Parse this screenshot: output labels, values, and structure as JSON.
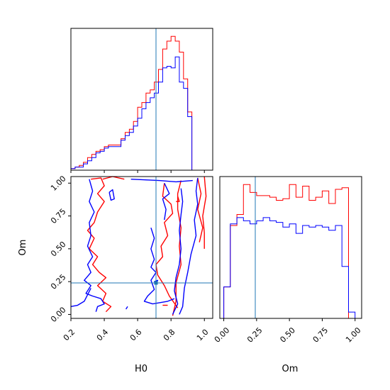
{
  "colors": {
    "series_red": "#ff0000",
    "series_blue": "#0000ff",
    "truth_line": "#1f77b4"
  },
  "chart_data": [
    {
      "type": "area",
      "panel": "H0 marginal histogram (step)",
      "xlim": [
        0.2,
        1.05
      ],
      "x_ticks": [
        0.2,
        0.4,
        0.6,
        0.8,
        1.0
      ],
      "x_tick_labels_shown": false,
      "y_ticks_shown": false,
      "truth": 0.71,
      "bin_edges": [
        0.2,
        0.225,
        0.25,
        0.275,
        0.3,
        0.325,
        0.35,
        0.375,
        0.4,
        0.425,
        0.45,
        0.475,
        0.5,
        0.525,
        0.55,
        0.575,
        0.6,
        0.625,
        0.65,
        0.675,
        0.7,
        0.725,
        0.75,
        0.775,
        0.8,
        0.825,
        0.85,
        0.875,
        0.9,
        0.925,
        0.95,
        0.975,
        1.0,
        1.025
      ],
      "series": [
        {
          "color": "red",
          "values": [
            0.01,
            0.02,
            0.03,
            0.05,
            0.08,
            0.1,
            0.12,
            0.13,
            0.15,
            0.16,
            0.16,
            0.16,
            0.2,
            0.24,
            0.26,
            0.31,
            0.4,
            0.43,
            0.49,
            0.51,
            0.56,
            0.64,
            0.77,
            0.82,
            0.85,
            0.82,
            0.75,
            0.58,
            0.37,
            0.0,
            0.0,
            0.0,
            0.0
          ]
        },
        {
          "color": "blue",
          "values": [
            0.01,
            0.02,
            0.02,
            0.04,
            0.06,
            0.08,
            0.11,
            0.12,
            0.14,
            0.15,
            0.15,
            0.15,
            0.19,
            0.22,
            0.24,
            0.28,
            0.33,
            0.39,
            0.43,
            0.46,
            0.49,
            0.56,
            0.65,
            0.66,
            0.65,
            0.72,
            0.56,
            0.52,
            0.34,
            0.0,
            0.0,
            0.0,
            0.0
          ]
        }
      ]
    },
    {
      "type": "line",
      "panel": "H0 vs Om 2D contours",
      "xlabel": "H0",
      "ylabel": "Om",
      "xlim": [
        0.2,
        1.05
      ],
      "ylim": [
        -0.03,
        1.05
      ],
      "x_ticks": [
        0.2,
        0.4,
        0.6,
        0.8,
        1.0
      ],
      "x_tick_labels": [
        "0.2",
        "0.4",
        "0.6",
        "0.8",
        "1.0"
      ],
      "y_ticks": [
        0.0,
        0.25,
        0.5,
        0.75,
        1.0
      ],
      "y_tick_labels": [
        "0.00",
        "0.25",
        "0.50",
        "0.75",
        "1.00"
      ],
      "truth": {
        "H0": 0.71,
        "Om": 0.24
      },
      "series": [
        {
          "color": "red",
          "contours": [
            [
              [
                0.32,
                1.03
              ],
              [
                0.38,
                1.04
              ],
              [
                0.4,
                0.98
              ],
              [
                0.36,
                0.92
              ],
              [
                0.4,
                0.86
              ],
              [
                0.36,
                0.78
              ],
              [
                0.34,
                0.7
              ],
              [
                0.3,
                0.64
              ],
              [
                0.34,
                0.58
              ],
              [
                0.31,
                0.5
              ],
              [
                0.36,
                0.44
              ],
              [
                0.33,
                0.38
              ],
              [
                0.37,
                0.32
              ],
              [
                0.41,
                0.28
              ],
              [
                0.36,
                0.22
              ],
              [
                0.41,
                0.16
              ],
              [
                0.39,
                0.1
              ],
              [
                0.44,
                0.06
              ],
              [
                0.41,
                0.02
              ]
            ],
            [
              [
                0.39,
                1.03
              ],
              [
                0.45,
                1.05
              ],
              [
                0.52,
                1.03
              ]
            ],
            [
              [
                0.76,
                1.0
              ],
              [
                0.75,
                0.9
              ],
              [
                0.8,
                0.84
              ],
              [
                0.81,
                0.77
              ],
              [
                0.76,
                0.7
              ],
              [
                0.78,
                0.6
              ],
              [
                0.74,
                0.52
              ],
              [
                0.75,
                0.44
              ],
              [
                0.71,
                0.38
              ],
              [
                0.72,
                0.3
              ],
              [
                0.76,
                0.22
              ],
              [
                0.79,
                0.14
              ],
              [
                0.84,
                0.05
              ]
            ],
            [
              [
                0.86,
                1.02
              ],
              [
                0.84,
                0.92
              ],
              [
                0.84,
                0.8
              ],
              [
                0.86,
                0.66
              ],
              [
                0.85,
                0.52
              ],
              [
                0.86,
                0.38
              ],
              [
                0.83,
                0.24
              ],
              [
                0.83,
                0.1
              ],
              [
                0.81,
                -0.01
              ]
            ],
            [
              [
                0.96,
                1.04
              ],
              [
                0.98,
                0.92
              ],
              [
                0.96,
                0.8
              ],
              [
                0.99,
                0.66
              ],
              [
                0.97,
                0.55
              ]
            ],
            [
              [
                1.0,
                1.05
              ],
              [
                1.01,
                0.9
              ],
              [
                0.99,
                0.75
              ],
              [
                1.0,
                0.62
              ],
              [
                1.0,
                0.5
              ]
            ],
            [
              [
                0.84,
                0.9
              ],
              [
                0.85,
                0.86
              ],
              [
                0.83,
                0.86
              ]
            ],
            [
              [
                0.75,
                0.07
              ],
              [
                0.78,
                0.07
              ]
            ]
          ]
        },
        {
          "color": "blue",
          "contours": [
            [
              [
                0.31,
                1.03
              ],
              [
                0.33,
                0.94
              ],
              [
                0.31,
                0.86
              ],
              [
                0.34,
                0.78
              ],
              [
                0.31,
                0.7
              ],
              [
                0.32,
                0.6
              ],
              [
                0.3,
                0.52
              ],
              [
                0.33,
                0.44
              ],
              [
                0.3,
                0.38
              ],
              [
                0.32,
                0.32
              ],
              [
                0.28,
                0.26
              ],
              [
                0.32,
                0.22
              ],
              [
                0.29,
                0.16
              ],
              [
                0.33,
                0.14
              ],
              [
                0.38,
                0.12
              ],
              [
                0.4,
                0.08
              ],
              [
                0.36,
                0.06
              ],
              [
                0.35,
                0.02
              ]
            ],
            [
              [
                0.32,
                0.2
              ],
              [
                0.28,
                0.1
              ],
              [
                0.24,
                0.07
              ],
              [
                0.2,
                0.06
              ]
            ],
            [
              [
                0.43,
                0.93
              ],
              [
                0.44,
                0.87
              ],
              [
                0.46,
                0.88
              ],
              [
                0.45,
                0.95
              ],
              [
                0.43,
                0.93
              ]
            ],
            [
              [
                0.56,
                1.03
              ],
              [
                0.73,
                1.02
              ],
              [
                0.83,
                1.01
              ],
              [
                0.93,
                1.02
              ]
            ],
            [
              [
                0.68,
                0.66
              ],
              [
                0.7,
                0.58
              ],
              [
                0.68,
                0.5
              ],
              [
                0.7,
                0.42
              ],
              [
                0.68,
                0.36
              ],
              [
                0.71,
                0.32
              ],
              [
                0.68,
                0.26
              ],
              [
                0.7,
                0.19
              ],
              [
                0.66,
                0.14
              ],
              [
                0.64,
                0.1
              ],
              [
                0.69,
                0.08
              ],
              [
                0.78,
                0.1
              ],
              [
                0.82,
                0.12
              ]
            ],
            [
              [
                0.76,
                0.72
              ],
              [
                0.77,
                0.8
              ],
              [
                0.75,
                0.88
              ],
              [
                0.79,
                0.92
              ],
              [
                0.76,
                1.0
              ]
            ],
            [
              [
                0.86,
                0.96
              ],
              [
                0.87,
                0.86
              ],
              [
                0.86,
                0.76
              ],
              [
                0.85,
                0.64
              ],
              [
                0.86,
                0.5
              ],
              [
                0.85,
                0.38
              ],
              [
                0.83,
                0.28
              ],
              [
                0.82,
                0.18
              ],
              [
                0.84,
                0.08
              ],
              [
                0.81,
                0.0
              ]
            ],
            [
              [
                0.96,
                1.04
              ],
              [
                0.95,
                0.94
              ],
              [
                0.96,
                0.84
              ],
              [
                0.94,
                0.72
              ],
              [
                0.95,
                0.6
              ],
              [
                0.92,
                0.46
              ],
              [
                0.9,
                0.32
              ],
              [
                0.88,
                0.2
              ],
              [
                0.87,
                0.06
              ],
              [
                0.85,
                0.0
              ]
            ],
            [
              [
                0.71,
                0.23
              ],
              [
                0.72,
                0.26
              ],
              [
                0.7,
                0.25
              ],
              [
                0.71,
                0.23
              ]
            ],
            [
              [
                0.53,
                0.04
              ],
              [
                0.54,
                0.06
              ]
            ]
          ]
        }
      ]
    },
    {
      "type": "area",
      "panel": "Om marginal histogram (step)",
      "xlabel": "Om",
      "xlim": [
        -0.03,
        1.05
      ],
      "x_ticks": [
        0.0,
        0.25,
        0.5,
        0.75,
        1.0
      ],
      "x_tick_labels": [
        "0.00",
        "0.25",
        "0.50",
        "0.75",
        "1.00"
      ],
      "y_ticks_shown": false,
      "truth": 0.24,
      "bin_edges": [
        0.0,
        0.05,
        0.1,
        0.15,
        0.2,
        0.25,
        0.3,
        0.35,
        0.4,
        0.45,
        0.5,
        0.55,
        0.6,
        0.65,
        0.7,
        0.75,
        0.8,
        0.85,
        0.9,
        0.95,
        1.0
      ],
      "series": [
        {
          "color": "red",
          "values": [
            0.2,
            0.59,
            0.66,
            0.85,
            0.8,
            0.78,
            0.78,
            0.77,
            0.75,
            0.76,
            0.85,
            0.77,
            0.84,
            0.75,
            0.77,
            0.81,
            0.73,
            0.82,
            0.83,
            0.0
          ]
        },
        {
          "color": "blue",
          "values": [
            0.2,
            0.6,
            0.64,
            0.62,
            0.6,
            0.62,
            0.64,
            0.62,
            0.61,
            0.58,
            0.6,
            0.54,
            0.59,
            0.58,
            0.59,
            0.58,
            0.56,
            0.59,
            0.33,
            0.04
          ]
        }
      ]
    }
  ]
}
